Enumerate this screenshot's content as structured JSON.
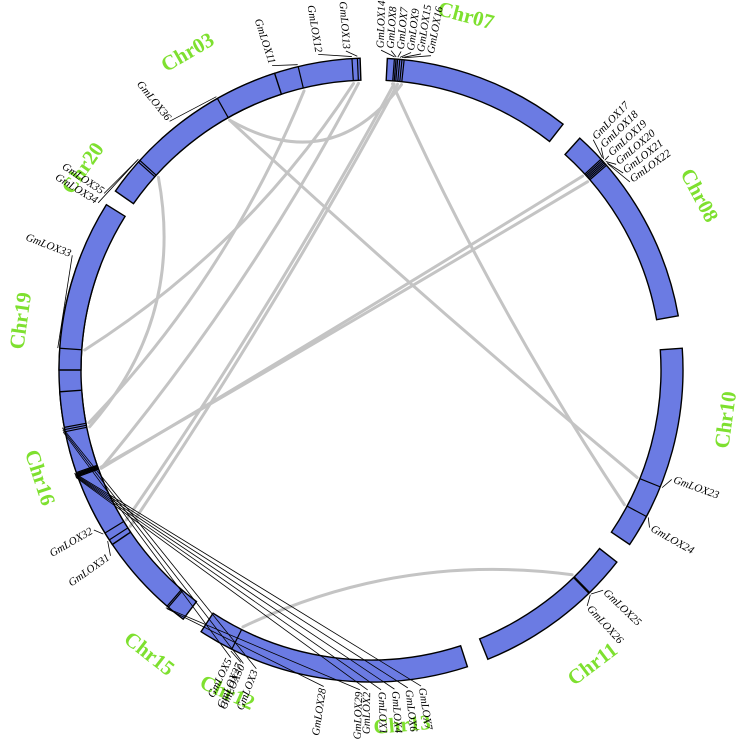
{
  "colors": {
    "chromosome_fill": "#6b7be3",
    "link": "#c4c4c4",
    "chromosome_label": "#7ee02f"
  },
  "chromosomes": [
    {
      "id": "chr03",
      "label": "Chr03",
      "start": 318,
      "end": 358,
      "label_angle": 330,
      "label_radius": 365,
      "genes": [
        {
          "name": "GmLOX11",
          "pos": 346.5,
          "text_angle": 342
        },
        {
          "name": "GmLOX12",
          "pos": 356.5,
          "text_angle": 350.5
        },
        {
          "name": "GmLOX13",
          "pos": 357.5,
          "text_angle": 355.5
        }
      ]
    },
    {
      "id": "chr07",
      "label": "Chr07",
      "start": 3,
      "end": 38,
      "label_angle": 15,
      "label_radius": 365,
      "genes": [
        {
          "name": "GmLOX14",
          "pos": 4.3,
          "text_angle": 1.8
        },
        {
          "name": "GmLOX8",
          "pos": 4.6,
          "text_angle": 3.6
        },
        {
          "name": "GmLOX7",
          "pos": 4.9,
          "text_angle": 5.4
        },
        {
          "name": "GmLOX9",
          "pos": 5.3,
          "text_angle": 7.2
        },
        {
          "name": "GmLOX15",
          "pos": 5.7,
          "text_angle": 9.0
        },
        {
          "name": "GmLOX16",
          "pos": 6.1,
          "text_angle": 10.8
        }
      ]
    },
    {
      "id": "chr08",
      "label": "Chr08",
      "start": 42,
      "end": 80,
      "label_angle": 62,
      "label_radius": 370,
      "genes": [
        {
          "name": "GmLOX17",
          "pos": 47.5,
          "text_angle": 44
        },
        {
          "name": "GmLOX18",
          "pos": 47.8,
          "text_angle": 46
        },
        {
          "name": "GmLOX19",
          "pos": 48.1,
          "text_angle": 48
        },
        {
          "name": "GmLOX20",
          "pos": 48.4,
          "text_angle": 50
        },
        {
          "name": "GmLOX21",
          "pos": 48.7,
          "text_angle": 52
        },
        {
          "name": "GmLOX22",
          "pos": 49.0,
          "text_angle": 54
        }
      ]
    },
    {
      "id": "chr10",
      "label": "Chr10",
      "start": 86,
      "end": 124,
      "label_angle": 98,
      "label_radius": 360,
      "genes": [
        {
          "name": "GmLOX23",
          "pos": 112,
          "text_angle": 110
        },
        {
          "name": "GmLOX24",
          "pos": 118,
          "text_angle": 119.5
        }
      ]
    },
    {
      "id": "chr11",
      "label": "Chr11",
      "start": 128,
      "end": 158,
      "label_angle": 143,
      "label_radius": 370,
      "genes": [
        {
          "name": "GmLOX25",
          "pos": 135.5,
          "text_angle": 133.5
        },
        {
          "name": "GmLOX26",
          "pos": 135.7,
          "text_angle": 137.5
        }
      ]
    },
    {
      "id": "chr12",
      "label": "Chr12",
      "start": 162,
      "end": 213,
      "label_angle": 204,
      "label_radius": 355,
      "genes": [
        {
          "name": "GmLOX27",
          "pos": 206.5,
          "text_angle": 204
        }
      ]
    },
    {
      "id": "chr13",
      "label": "Chr13",
      "start": 217,
      "end": 255,
      "label_angle": 175,
      "label_radius": 358,
      "genes": [
        {
          "name": "GmLOX28",
          "pos": 220.5,
          "text_angle": 188.5
        },
        {
          "name": "GmLOX29",
          "pos": 220.8,
          "text_angle": 182
        },
        {
          "name": "GmLOX2",
          "pos": 250,
          "text_angle": 180.6
        },
        {
          "name": "GmLOX1",
          "pos": 250.2,
          "text_angle": 178.2
        },
        {
          "name": "GmLOX4",
          "pos": 250.4,
          "text_angle": 175.8
        },
        {
          "name": "GmLOX6",
          "pos": 250.6,
          "text_angle": 173.4
        },
        {
          "name": "GmLOX7",
          "pos": 250.8,
          "text_angle": 171
        }
      ]
    },
    {
      "id": "chr15",
      "label": "Chr15",
      "start": 259,
      "end": 291,
      "label_angle": 218,
      "label_radius": 362,
      "genes": [
        {
          "name": "GmLOX5",
          "pos": 258.6,
          "text_angle": 206
        },
        {
          "name": "GmLOX30",
          "pos": 259.0,
          "text_angle": 203.5
        },
        {
          "name": "GmLOX3",
          "pos": 259.4,
          "text_angle": 201
        }
      ]
    },
    {
      "id": "chr16",
      "label": "Chr16",
      "start": 236,
      "end": 266,
      "label_angle": 252,
      "label_radius": 350,
      "genes": [
        {
          "name": "GmLOX32",
          "pos": 238.5,
          "text_angle": 240
        },
        {
          "name": "GmLOX31",
          "pos": 237,
          "text_angle": 234.5
        }
      ]
    },
    {
      "id": "chr19",
      "label": "Chr19",
      "start": 270,
      "end": 302,
      "label_angle": 278,
      "label_radius": 352,
      "genes": [
        {
          "name": "GmLOX33",
          "pos": 274,
          "text_angle": 291
        }
      ]
    },
    {
      "id": "chr20",
      "label": "Chr20",
      "start": 305,
      "end": 342,
      "label_angle": 305,
      "label_radius": 350,
      "genes": [
        {
          "name": "GmLOX36",
          "pos": 330.5,
          "text_angle": 321
        },
        {
          "name": "GmLOX35",
          "pos": 311.8,
          "text_angle": 303.5
        },
        {
          "name": "GmLOX34",
          "pos": 312.2,
          "text_angle": 301.5
        }
      ]
    }
  ],
  "links": [
    [
      "GmLOX11",
      "GmLOX3"
    ],
    [
      "GmLOX13",
      "GmLOX2"
    ],
    [
      "GmLOX12",
      "GmLOX33"
    ],
    [
      "GmLOX14",
      "GmLOX24"
    ],
    [
      "GmLOX8",
      "GmLOX32"
    ],
    [
      "GmLOX9",
      "GmLOX31"
    ],
    [
      "GmLOX16",
      "GmLOX36"
    ],
    [
      "GmLOX17",
      "GmLOX2"
    ],
    [
      "GmLOX22",
      "GmLOX1"
    ],
    [
      "GmLOX36",
      "GmLOX23"
    ],
    [
      "GmLOX25",
      "GmLOX27"
    ],
    [
      "GmLOX5",
      "GmLOX34"
    ]
  ]
}
